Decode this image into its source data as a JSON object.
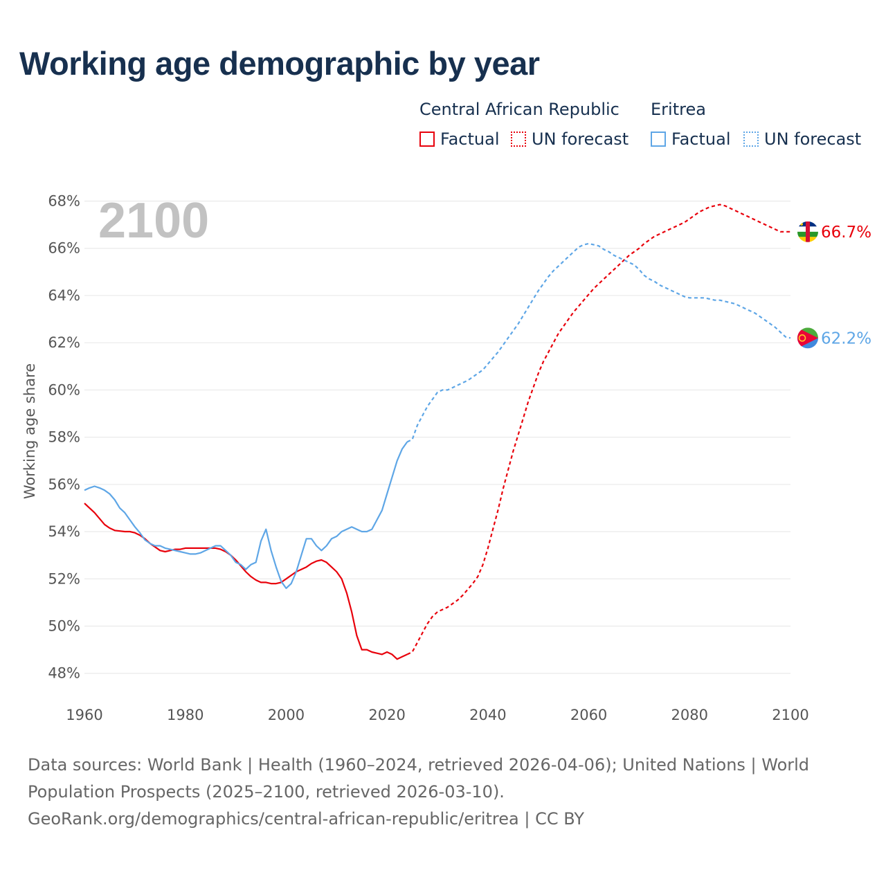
{
  "title": "Working age demographic by year",
  "legend": {
    "groups": [
      {
        "name": "Central African Republic",
        "color": "#e8000b",
        "factual_label": "Factual",
        "forecast_label": "UN forecast"
      },
      {
        "name": "Eritrea",
        "color": "#5ea6e6",
        "factual_label": "Factual",
        "forecast_label": "UN forecast"
      }
    ]
  },
  "year_label": "2100",
  "footer": {
    "line1": "Data sources: World Bank | Health (1960–2024, retrieved 2026-04-06); United Nations | World",
    "line2": "Population Prospects (2025–2100, retrieved 2026-03-10).",
    "line3": "GeoRank.org/demographics/central-african-republic/eritrea | CC BY"
  },
  "chart_data": {
    "type": "line",
    "title": "Working age demographic by year",
    "xlabel": "",
    "ylabel": "Working age share",
    "xlim": [
      1960,
      2100
    ],
    "ylim": [
      47.2,
      68.6
    ],
    "x_ticks": [
      1960,
      1980,
      2000,
      2020,
      2040,
      2060,
      2080,
      2100
    ],
    "x_tick_labels": [
      "1960",
      "1980",
      "2000",
      "2020",
      "2040",
      "2060",
      "2080",
      "2100"
    ],
    "y_ticks": [
      48,
      50,
      52,
      54,
      56,
      58,
      60,
      62,
      64,
      66,
      68
    ],
    "y_tick_labels": [
      "48%",
      "50%",
      "52%",
      "54%",
      "56%",
      "58%",
      "60%",
      "62%",
      "64%",
      "66%",
      "68%"
    ],
    "factual_end_year": 2024,
    "series": [
      {
        "name": "Central African Republic",
        "color": "#e8000b",
        "end_label": "66.7%",
        "x": [
          1960,
          1962,
          1964,
          1965,
          1966,
          1968,
          1969,
          1970,
          1971,
          1972,
          1973,
          1974,
          1975,
          1976,
          1977,
          1978,
          1979,
          1980,
          1982,
          1984,
          1986,
          1987,
          1988,
          1989,
          1990,
          1991,
          1992,
          1993,
          1994,
          1995,
          1996,
          1997,
          1998,
          1999,
          2000,
          2002,
          2004,
          2005,
          2006,
          2007,
          2008,
          2009,
          2010,
          2011,
          2012,
          2013,
          2014,
          2015,
          2016,
          2017,
          2018,
          2019,
          2020,
          2021,
          2022,
          2023,
          2024,
          2025,
          2026,
          2027,
          2028,
          2029,
          2030,
          2031,
          2032,
          2033,
          2034,
          2035,
          2036,
          2037,
          2038,
          2039,
          2040,
          2041,
          2042,
          2043,
          2044,
          2045,
          2046,
          2047,
          2048,
          2049,
          2050,
          2051,
          2052,
          2053,
          2054,
          2055,
          2056,
          2057,
          2058,
          2059,
          2060,
          2061,
          2062,
          2063,
          2064,
          2065,
          2066,
          2067,
          2068,
          2069,
          2070,
          2071,
          2072,
          2073,
          2074,
          2075,
          2076,
          2077,
          2078,
          2079,
          2080,
          2081,
          2082,
          2083,
          2084,
          2085,
          2086,
          2087,
          2088,
          2089,
          2090,
          2091,
          2092,
          2093,
          2094,
          2095,
          2096,
          2097,
          2098,
          2099,
          2100
        ],
        "values": [
          55.2,
          54.8,
          54.3,
          54.15,
          54.05,
          54.0,
          54.0,
          53.95,
          53.85,
          53.7,
          53.5,
          53.35,
          53.2,
          53.15,
          53.2,
          53.25,
          53.25,
          53.3,
          53.3,
          53.3,
          53.3,
          53.25,
          53.15,
          53.0,
          52.8,
          52.55,
          52.3,
          52.1,
          51.95,
          51.85,
          51.85,
          51.8,
          51.8,
          51.85,
          52.0,
          52.3,
          52.5,
          52.65,
          52.75,
          52.8,
          52.7,
          52.5,
          52.3,
          52.0,
          51.4,
          50.6,
          49.6,
          49.0,
          49.0,
          48.9,
          48.85,
          48.8,
          48.9,
          48.8,
          48.6,
          48.7,
          48.8,
          48.9,
          49.3,
          49.7,
          50.1,
          50.4,
          50.6,
          50.7,
          50.8,
          50.95,
          51.1,
          51.3,
          51.55,
          51.8,
          52.1,
          52.6,
          53.3,
          54.1,
          54.9,
          55.8,
          56.6,
          57.4,
          58.1,
          58.8,
          59.5,
          60.1,
          60.7,
          61.2,
          61.6,
          62.0,
          62.4,
          62.7,
          63.0,
          63.3,
          63.55,
          63.8,
          64.05,
          64.3,
          64.5,
          64.7,
          64.9,
          65.1,
          65.3,
          65.5,
          65.7,
          65.85,
          66.0,
          66.2,
          66.35,
          66.5,
          66.6,
          66.7,
          66.8,
          66.9,
          67.0,
          67.1,
          67.25,
          67.4,
          67.55,
          67.65,
          67.75,
          67.8,
          67.85,
          67.8,
          67.7,
          67.6,
          67.5,
          67.4,
          67.3,
          67.2,
          67.1,
          67.0,
          66.9,
          66.8,
          66.7,
          66.7,
          66.7
        ]
      },
      {
        "name": "Eritrea",
        "color": "#5ea6e6",
        "end_label": "62.2%",
        "x": [
          1960,
          1961,
          1962,
          1963,
          1964,
          1965,
          1966,
          1967,
          1968,
          1969,
          1970,
          1971,
          1972,
          1973,
          1974,
          1975,
          1976,
          1977,
          1978,
          1979,
          1980,
          1981,
          1982,
          1983,
          1984,
          1985,
          1986,
          1987,
          1988,
          1989,
          1990,
          1991,
          1992,
          1993,
          1994,
          1995,
          1996,
          1997,
          1998,
          1999,
          2000,
          2001,
          2002,
          2003,
          2004,
          2005,
          2006,
          2007,
          2008,
          2009,
          2010,
          2011,
          2012,
          2013,
          2014,
          2015,
          2016,
          2017,
          2018,
          2019,
          2020,
          2021,
          2022,
          2023,
          2024,
          2025,
          2026,
          2027,
          2028,
          2029,
          2030,
          2031,
          2032,
          2033,
          2034,
          2035,
          2036,
          2037,
          2038,
          2039,
          2040,
          2041,
          2042,
          2043,
          2044,
          2045,
          2046,
          2047,
          2048,
          2049,
          2050,
          2051,
          2052,
          2053,
          2054,
          2055,
          2056,
          2057,
          2058,
          2059,
          2060,
          2061,
          2062,
          2063,
          2064,
          2065,
          2066,
          2067,
          2068,
          2069,
          2070,
          2071,
          2072,
          2073,
          2074,
          2075,
          2076,
          2077,
          2078,
          2079,
          2080,
          2081,
          2082,
          2083,
          2084,
          2085,
          2086,
          2087,
          2088,
          2089,
          2090,
          2091,
          2092,
          2093,
          2094,
          2095,
          2096,
          2097,
          2098,
          2099,
          2100
        ],
        "values": [
          55.75,
          55.85,
          55.92,
          55.85,
          55.75,
          55.6,
          55.35,
          55.0,
          54.8,
          54.5,
          54.2,
          53.95,
          53.65,
          53.5,
          53.4,
          53.4,
          53.3,
          53.25,
          53.2,
          53.15,
          53.1,
          53.05,
          53.05,
          53.1,
          53.2,
          53.3,
          53.4,
          53.4,
          53.2,
          53.0,
          52.7,
          52.6,
          52.4,
          52.6,
          52.7,
          53.6,
          54.1,
          53.2,
          52.5,
          51.9,
          51.6,
          51.8,
          52.3,
          53.0,
          53.7,
          53.7,
          53.4,
          53.2,
          53.4,
          53.7,
          53.8,
          54.0,
          54.1,
          54.2,
          54.1,
          54.0,
          54.0,
          54.1,
          54.5,
          54.9,
          55.6,
          56.3,
          57.0,
          57.5,
          57.8,
          57.9,
          58.5,
          58.9,
          59.3,
          59.6,
          59.9,
          60.0,
          60.0,
          60.1,
          60.2,
          60.3,
          60.4,
          60.55,
          60.7,
          60.85,
          61.1,
          61.35,
          61.6,
          61.9,
          62.2,
          62.5,
          62.8,
          63.15,
          63.5,
          63.85,
          64.2,
          64.5,
          64.8,
          65.05,
          65.25,
          65.45,
          65.65,
          65.85,
          66.05,
          66.15,
          66.2,
          66.15,
          66.1,
          65.95,
          65.85,
          65.7,
          65.6,
          65.5,
          65.4,
          65.3,
          65.1,
          64.85,
          64.7,
          64.6,
          64.45,
          64.35,
          64.25,
          64.15,
          64.05,
          63.95,
          63.9,
          63.9,
          63.9,
          63.9,
          63.85,
          63.8,
          63.8,
          63.75,
          63.7,
          63.65,
          63.55,
          63.45,
          63.35,
          63.25,
          63.1,
          62.95,
          62.8,
          62.65,
          62.45,
          62.25,
          62.2
        ]
      }
    ]
  }
}
